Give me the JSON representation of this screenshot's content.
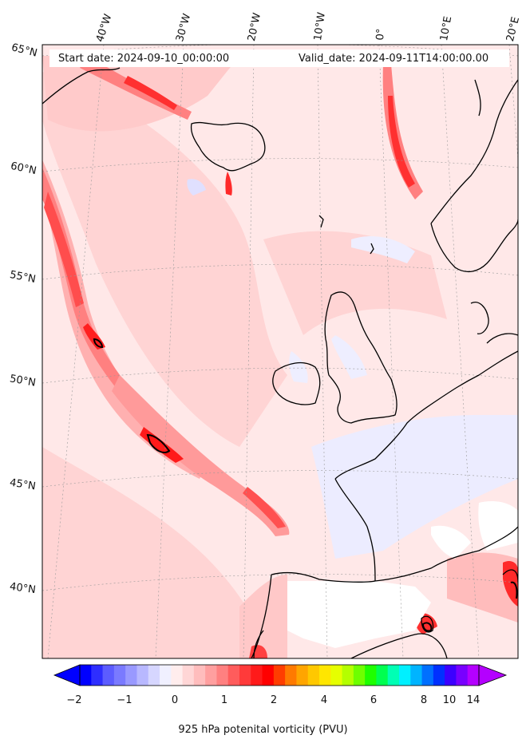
{
  "header": {
    "start_date": "Start date: 2024-09-10_00:00:00",
    "valid_date": "Valid_date: 2024-09-11T14:00:00.00"
  },
  "map": {
    "longitude_labels": [
      "40°W",
      "30°W",
      "20°W",
      "10°W",
      "0°",
      "10°E",
      "20°E"
    ],
    "latitude_labels": [
      "65°N",
      "60°N",
      "55°N",
      "50°N",
      "45°N",
      "40°N"
    ],
    "field_colors": {
      "background": "#ffe6e6",
      "light_pink": "#ffcccc",
      "pink": "#ffb3b3",
      "salmon": "#ff8080",
      "red": "#ff4d4d",
      "deep_red": "#ff1a1a",
      "light_blue": "#e6e6ff",
      "blue": "#c8c8ff",
      "coast": "#000000"
    }
  },
  "colorbar": {
    "tick_labels": [
      "−2",
      "−1",
      "0",
      "1",
      "2",
      "4",
      "6",
      "8",
      "10",
      "14"
    ],
    "label": "925 hPa potenital vorticity (PVU)",
    "colors": [
      "#0000ff",
      "#2e2eff",
      "#5c5cff",
      "#7a7aff",
      "#9999ff",
      "#b8b8ff",
      "#d6d6ff",
      "#f0f0ff",
      "#ffeded",
      "#ffd6d6",
      "#ffbdbd",
      "#ff9f9f",
      "#ff8080",
      "#ff5c5c",
      "#ff3a3a",
      "#ff1a1a",
      "#ff0000",
      "#ff3d00",
      "#ff7a00",
      "#ffa500",
      "#ffc800",
      "#ffe600",
      "#e6ff00",
      "#b4ff00",
      "#6eff00",
      "#1eff00",
      "#00ff50",
      "#00ffb4",
      "#00f0ff",
      "#00b4ff",
      "#0070ff",
      "#0030ff",
      "#3c00ff",
      "#7800ff",
      "#b400ff"
    ],
    "under_color": "#0000ff",
    "over_color": "#b400ff"
  }
}
